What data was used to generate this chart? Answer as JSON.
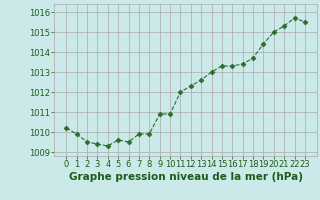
{
  "x": [
    0,
    1,
    2,
    3,
    4,
    5,
    6,
    7,
    8,
    9,
    10,
    11,
    12,
    13,
    14,
    15,
    16,
    17,
    18,
    19,
    20,
    21,
    22,
    23
  ],
  "y": [
    1010.2,
    1009.9,
    1009.5,
    1009.4,
    1009.3,
    1009.6,
    1009.5,
    1009.9,
    1009.9,
    1010.9,
    1010.9,
    1012.0,
    1012.3,
    1012.6,
    1013.0,
    1013.3,
    1013.3,
    1013.4,
    1013.7,
    1014.4,
    1015.0,
    1015.3,
    1015.7,
    1015.5
  ],
  "line_color": "#2d6a2d",
  "marker": "D",
  "marker_size": 2.5,
  "bg_color": "#cce9e9",
  "grid_color": "#aaaaaa",
  "xlabel": "Graphe pression niveau de la mer (hPa)",
  "xlabel_color": "#1a5c1a",
  "xlabel_fontsize": 7.5,
  "tick_color": "#1a5c1a",
  "tick_fontsize": 6,
  "ylim": [
    1008.8,
    1016.4
  ],
  "yticks": [
    1009,
    1010,
    1011,
    1012,
    1013,
    1014,
    1015,
    1016
  ],
  "xticks": [
    0,
    1,
    2,
    3,
    4,
    5,
    6,
    7,
    8,
    9,
    10,
    11,
    12,
    13,
    14,
    15,
    16,
    17,
    18,
    19,
    20,
    21,
    22,
    23
  ]
}
